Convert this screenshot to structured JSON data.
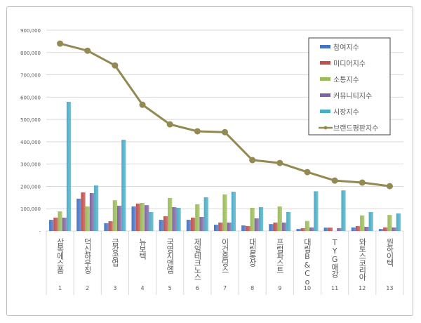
{
  "chart_data": {
    "type": "bar",
    "title": "",
    "xlabel": "",
    "ylabel": "",
    "ylim": [
      0,
      900000
    ],
    "yticks": [
      "-",
      "100,000",
      "200,000",
      "300,000",
      "400,000",
      "500,000",
      "600,000",
      "700,000",
      "800,000",
      "900,000"
    ],
    "grid": true,
    "legend_position": "top-right",
    "categories": [
      "삼목에스폼",
      "덕신하우징",
      "금강공업",
      "뉴보텍",
      "국영지앤엠",
      "제일테크노스",
      "이건홀딩스",
      "대림통상",
      "프럼파스트",
      "대림B&Co",
      "TYG애강",
      "와토스코리아",
      "원하이텍"
    ],
    "ranks": [
      "1",
      "2",
      "3",
      "4",
      "5",
      "6",
      "7",
      "8",
      "9",
      "10",
      "11",
      "12",
      "13"
    ],
    "series": [
      {
        "name": "참여지수",
        "type": "bar",
        "color": "#4472C4",
        "values": [
          50000,
          145000,
          35000,
          110000,
          50000,
          50000,
          28000,
          25000,
          31000,
          9000,
          15000,
          16000,
          9000
        ]
      },
      {
        "name": "미디어지수",
        "type": "bar",
        "color": "#C0504D",
        "values": [
          60000,
          173000,
          44000,
          123000,
          66000,
          60000,
          38000,
          22000,
          38000,
          13000,
          15000,
          22000,
          16000
        ]
      },
      {
        "name": "소통지수",
        "type": "bar",
        "color": "#9BBB59",
        "values": [
          88000,
          110000,
          138000,
          126000,
          148000,
          120000,
          164000,
          104000,
          110000,
          45000,
          0,
          70000,
          72000
        ]
      },
      {
        "name": "커뮤니티지수",
        "type": "bar",
        "color": "#8064A2",
        "values": [
          60000,
          170000,
          113000,
          116000,
          107000,
          63000,
          38000,
          57000,
          38000,
          16000,
          13000,
          19000,
          16000
        ]
      },
      {
        "name": "시장지수",
        "type": "bar",
        "color": "#4BACC6",
        "values": [
          579000,
          204000,
          409000,
          85000,
          104000,
          151000,
          176000,
          107000,
          85000,
          178000,
          182000,
          85000,
          79000
        ]
      },
      {
        "name": "브랜드평판지수",
        "type": "line",
        "color": "#938953",
        "values": [
          840000,
          808000,
          742000,
          566000,
          478000,
          447000,
          443000,
          318000,
          305000,
          264000,
          226000,
          217000,
          201000
        ]
      }
    ]
  }
}
